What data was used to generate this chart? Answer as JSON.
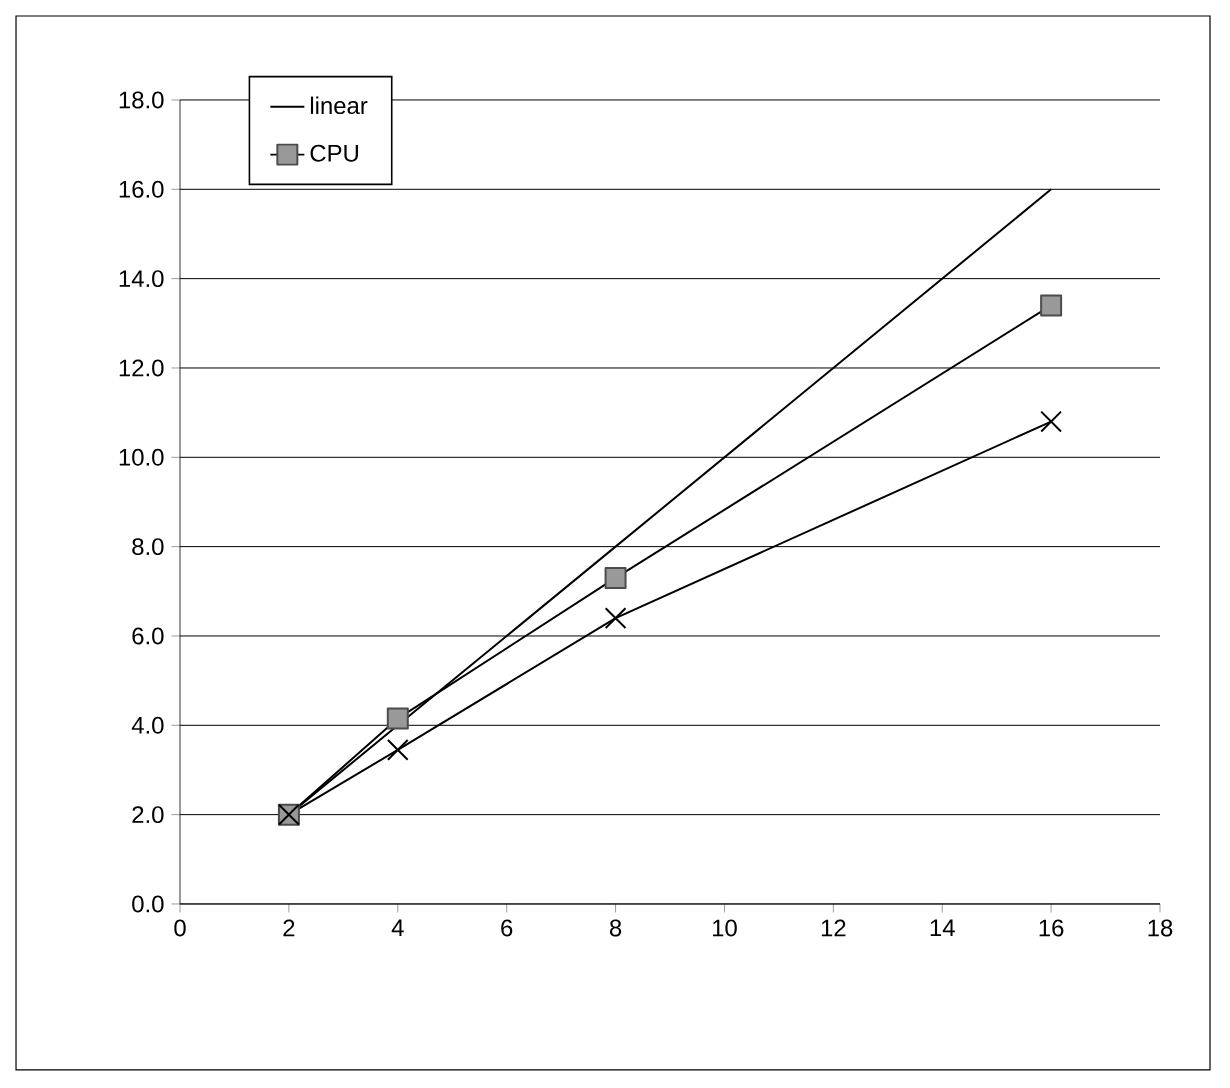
{
  "chart_data": {
    "type": "line",
    "x": [
      2,
      4,
      8,
      16
    ],
    "series": [
      {
        "name": "linear",
        "color": "#000000",
        "marker": "none",
        "values": [
          2,
          4,
          8,
          16
        ]
      },
      {
        "name": "CPU",
        "color": "#000000",
        "marker": "square",
        "values": [
          2.0,
          4.15,
          7.3,
          13.4
        ]
      },
      {
        "color": "#000000",
        "marker": "cross",
        "values": [
          2.0,
          3.45,
          6.4,
          10.8
        ]
      }
    ],
    "xlim": [
      0,
      18
    ],
    "xticks": [
      0,
      2,
      4,
      6,
      8,
      10,
      12,
      14,
      16,
      18
    ],
    "ylim": [
      0,
      18
    ],
    "yticks": [
      {
        "value": 0,
        "label": "0.0"
      },
      {
        "value": 2,
        "label": "2.0"
      },
      {
        "value": 4,
        "label": "4.0"
      },
      {
        "value": 6,
        "label": "6.0"
      },
      {
        "value": 8,
        "label": "8.0"
      },
      {
        "value": 10,
        "label": "10.0"
      },
      {
        "value": 12,
        "label": "12.0"
      },
      {
        "value": 14,
        "label": "14.0"
      },
      {
        "value": 16,
        "label": "16.0"
      },
      {
        "value": 18,
        "label": "18.0"
      }
    ],
    "grid": "y",
    "legend": "top left",
    "line_style": "solid"
  }
}
